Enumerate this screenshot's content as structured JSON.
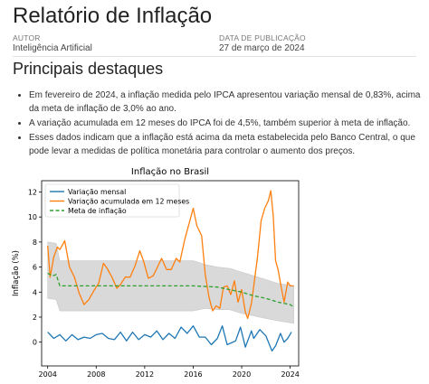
{
  "report": {
    "title": "Relatório de Inflação",
    "author_label": "AUTOR",
    "author": "Inteligência Artificial",
    "date_label": "DATA DE PUBLICAÇÃO",
    "date": "27 de março de 2024",
    "section_title": "Principais destaques",
    "bullets": [
      "Em fevereiro de 2024, a inflação medida pelo IPCA apresentou variação mensal de 0,83%, acima da meta de inflação de 3,0% ao ano.",
      "A variação acumulada em 12 meses do IPCA foi de 4,5%, também superior à meta de inflação.",
      "Esses dados indicam que a inflação está acima da meta estabelecida pelo Banco Central, o que pode levar a medidas de política monetária para controlar o aumento dos preços."
    ]
  },
  "colors": {
    "monthly": "#1f77b4",
    "accumulated": "#ff7f0e",
    "target": "#2ca02c",
    "band": "#d9d9d9"
  },
  "chart_data": {
    "type": "line",
    "title": "Inflação no Brasil",
    "xlabel": "",
    "ylabel": "Inflação (%)",
    "xlim": [
      2003.5,
      2024.7
    ],
    "ylim": [
      -1.9,
      12.9
    ],
    "xticks": [
      "2004",
      "2008",
      "2012",
      "2016",
      "2020",
      "2024"
    ],
    "yticks": [
      "0",
      "2",
      "4",
      "6",
      "8",
      "10",
      "12"
    ],
    "legend_position": "top-left",
    "grid": false,
    "series": [
      {
        "name": "Variação mensal",
        "style": "solid",
        "color": "#1f77b4",
        "points": [
          [
            2004.0,
            0.8
          ],
          [
            2004.5,
            0.3
          ],
          [
            2005.0,
            0.6
          ],
          [
            2005.5,
            0.1
          ],
          [
            2006.0,
            0.6
          ],
          [
            2006.5,
            0.2
          ],
          [
            2007.0,
            0.4
          ],
          [
            2007.5,
            0.3
          ],
          [
            2008.0,
            0.6
          ],
          [
            2008.5,
            0.7
          ],
          [
            2009.0,
            0.3
          ],
          [
            2009.5,
            0.2
          ],
          [
            2010.0,
            0.8
          ],
          [
            2010.5,
            0.1
          ],
          [
            2011.0,
            0.8
          ],
          [
            2011.5,
            0.2
          ],
          [
            2012.0,
            0.6
          ],
          [
            2012.5,
            0.4
          ],
          [
            2013.0,
            0.9
          ],
          [
            2013.5,
            0.2
          ],
          [
            2014.0,
            0.7
          ],
          [
            2014.5,
            0.3
          ],
          [
            2015.0,
            1.2
          ],
          [
            2015.5,
            0.7
          ],
          [
            2016.0,
            1.3
          ],
          [
            2016.5,
            0.4
          ],
          [
            2017.0,
            0.4
          ],
          [
            2017.5,
            -0.2
          ],
          [
            2018.0,
            0.3
          ],
          [
            2018.4,
            1.3
          ],
          [
            2018.8,
            -0.2
          ],
          [
            2019.5,
            0.1
          ],
          [
            2019.9,
            1.2
          ],
          [
            2020.3,
            -0.4
          ],
          [
            2020.8,
            0.9
          ],
          [
            2021.0,
            0.3
          ],
          [
            2021.5,
            1.0
          ],
          [
            2022.0,
            0.5
          ],
          [
            2022.5,
            -0.7
          ],
          [
            2022.8,
            -0.3
          ],
          [
            2023.2,
            0.7
          ],
          [
            2023.5,
            0.0
          ],
          [
            2023.8,
            0.3
          ],
          [
            2024.1,
            0.8
          ]
        ]
      },
      {
        "name": "Variação acumulada em 12 meses",
        "style": "solid",
        "color": "#ff7f0e",
        "points": [
          [
            2004.0,
            7.7
          ],
          [
            2004.2,
            5.2
          ],
          [
            2004.5,
            6.8
          ],
          [
            2004.8,
            7.6
          ],
          [
            2005.0,
            7.4
          ],
          [
            2005.4,
            8.1
          ],
          [
            2005.8,
            6.0
          ],
          [
            2006.2,
            5.2
          ],
          [
            2006.6,
            3.9
          ],
          [
            2007.0,
            3.0
          ],
          [
            2007.4,
            3.4
          ],
          [
            2007.8,
            4.1
          ],
          [
            2008.2,
            4.7
          ],
          [
            2008.6,
            6.3
          ],
          [
            2008.9,
            5.9
          ],
          [
            2009.3,
            5.2
          ],
          [
            2009.7,
            4.3
          ],
          [
            2010.0,
            4.6
          ],
          [
            2010.4,
            5.2
          ],
          [
            2010.8,
            5.2
          ],
          [
            2011.2,
            6.1
          ],
          [
            2011.6,
            7.3
          ],
          [
            2011.9,
            6.5
          ],
          [
            2012.3,
            5.1
          ],
          [
            2012.7,
            5.3
          ],
          [
            2013.0,
            5.9
          ],
          [
            2013.4,
            6.7
          ],
          [
            2013.8,
            5.8
          ],
          [
            2014.2,
            5.8
          ],
          [
            2014.6,
            6.7
          ],
          [
            2014.9,
            6.4
          ],
          [
            2015.3,
            8.2
          ],
          [
            2015.7,
            9.6
          ],
          [
            2016.0,
            10.7
          ],
          [
            2016.3,
            9.3
          ],
          [
            2016.7,
            8.5
          ],
          [
            2017.0,
            5.4
          ],
          [
            2017.3,
            3.6
          ],
          [
            2017.6,
            2.5
          ],
          [
            2017.9,
            2.9
          ],
          [
            2018.2,
            2.7
          ],
          [
            2018.5,
            4.4
          ],
          [
            2018.8,
            4.5
          ],
          [
            2019.1,
            3.8
          ],
          [
            2019.4,
            4.9
          ],
          [
            2019.7,
            3.2
          ],
          [
            2020.0,
            4.2
          ],
          [
            2020.3,
            2.4
          ],
          [
            2020.5,
            1.9
          ],
          [
            2020.8,
            3.1
          ],
          [
            2021.0,
            4.5
          ],
          [
            2021.3,
            6.8
          ],
          [
            2021.6,
            9.7
          ],
          [
            2021.9,
            10.7
          ],
          [
            2022.2,
            11.3
          ],
          [
            2022.4,
            12.1
          ],
          [
            2022.6,
            10.1
          ],
          [
            2022.8,
            6.5
          ],
          [
            2023.0,
            5.8
          ],
          [
            2023.3,
            4.2
          ],
          [
            2023.5,
            3.2
          ],
          [
            2023.8,
            4.8
          ],
          [
            2024.0,
            4.5
          ],
          [
            2024.3,
            4.5
          ]
        ]
      },
      {
        "name": "Meta de inflação",
        "style": "dashed",
        "color": "#2ca02c",
        "points": [
          [
            2004.0,
            5.5
          ],
          [
            2004.4,
            5.3
          ],
          [
            2004.7,
            5.4
          ],
          [
            2005.0,
            4.5
          ],
          [
            2012.0,
            4.5
          ],
          [
            2016.0,
            4.5
          ],
          [
            2018.0,
            4.4
          ],
          [
            2019.0,
            4.2
          ],
          [
            2020.0,
            4.0
          ],
          [
            2021.0,
            3.7
          ],
          [
            2022.0,
            3.5
          ],
          [
            2023.0,
            3.2
          ],
          [
            2024.0,
            3.0
          ],
          [
            2024.3,
            2.8
          ]
        ]
      }
    ],
    "band": {
      "upper": [
        [
          2004.0,
          8.0
        ],
        [
          2004.7,
          7.9
        ],
        [
          2005.0,
          6.5
        ],
        [
          2016.0,
          6.5
        ],
        [
          2017.0,
          6.2
        ],
        [
          2018.0,
          6.0
        ],
        [
          2019.0,
          5.9
        ],
        [
          2020.0,
          5.6
        ],
        [
          2021.0,
          5.3
        ],
        [
          2022.0,
          5.0
        ],
        [
          2023.0,
          4.7
        ],
        [
          2024.3,
          4.5
        ]
      ],
      "lower": [
        [
          2004.0,
          3.5
        ],
        [
          2004.7,
          3.4
        ],
        [
          2005.0,
          2.5
        ],
        [
          2016.0,
          2.5
        ],
        [
          2017.0,
          2.7
        ],
        [
          2018.0,
          2.6
        ],
        [
          2019.0,
          2.6
        ],
        [
          2020.0,
          2.3
        ],
        [
          2021.0,
          2.1
        ],
        [
          2022.0,
          1.9
        ],
        [
          2023.0,
          1.7
        ],
        [
          2024.3,
          1.5
        ]
      ]
    }
  }
}
